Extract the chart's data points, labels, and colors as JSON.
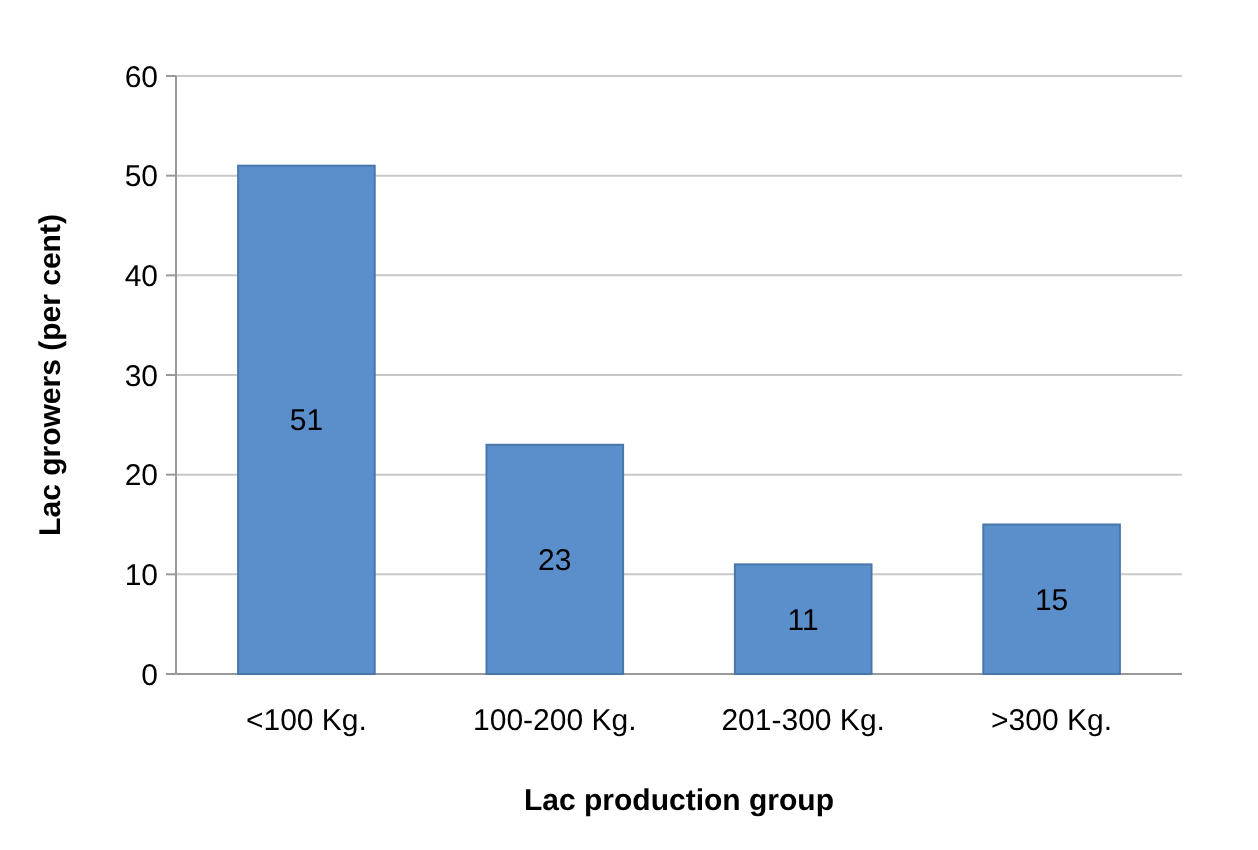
{
  "chart_data": {
    "type": "bar",
    "xlabel": "Lac production group",
    "ylabel": "Lac growers (per cent)",
    "categories": [
      "<100 Kg.",
      "100-200 Kg.",
      "201-300 Kg.",
      ">300 Kg."
    ],
    "values": [
      51,
      23,
      11,
      15
    ],
    "color": "#5b8fcb",
    "ylim": [
      0,
      60
    ],
    "yticks": [
      0,
      10,
      20,
      30,
      40,
      50,
      60
    ],
    "grid": "y",
    "data_labels": true
  }
}
